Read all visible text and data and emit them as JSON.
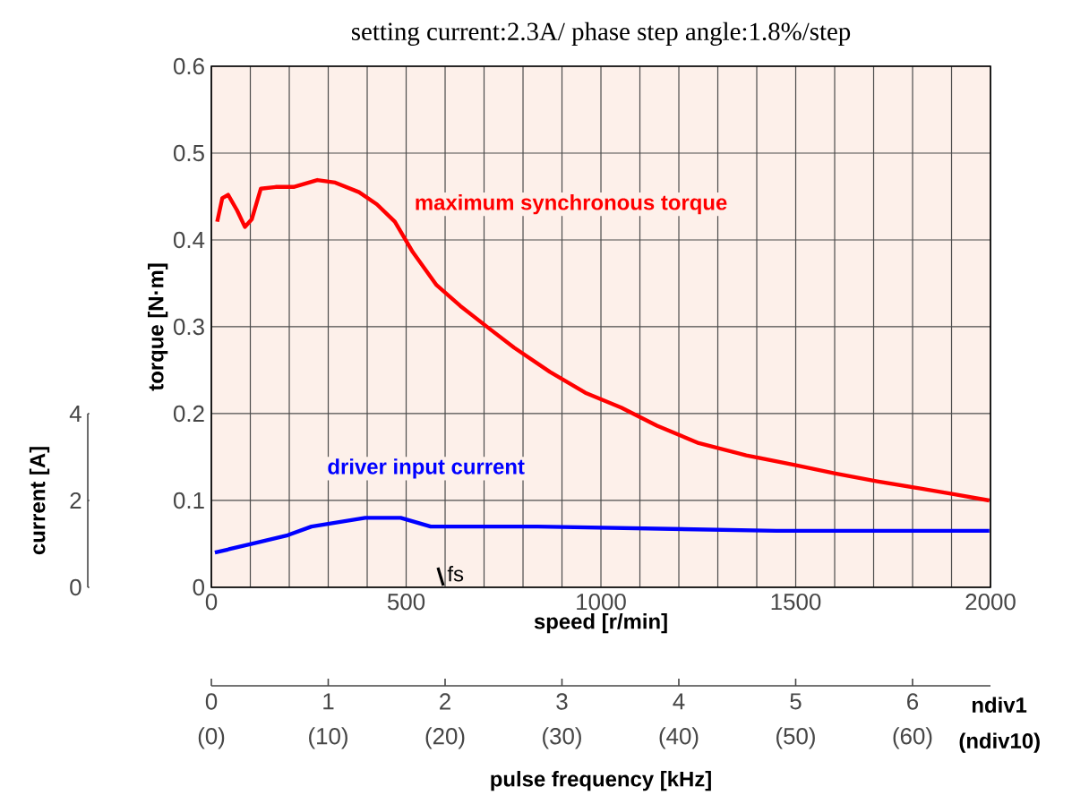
{
  "chart_data": {
    "type": "line",
    "title": "setting current:2.3A/ phase   step angle:1.8%/step",
    "xlabel": "speed [r/min]",
    "ylabel": "torque [N·m]",
    "y2label": "current [A]",
    "x2label": "pulse frequency [kHz]",
    "xlim": [
      0,
      2000
    ],
    "xticks": [
      0,
      {
        "value": 100,
        "label": null
      },
      {
        "value": 200,
        "label": null
      },
      {
        "value": 300,
        "label": null
      },
      {
        "value": 400,
        "label": null
      },
      500,
      {
        "value": 600,
        "label": null
      },
      {
        "value": 700,
        "label": null
      },
      {
        "value": 800,
        "label": null
      },
      {
        "value": 900,
        "label": null
      },
      1000,
      {
        "value": 1100,
        "label": null
      },
      {
        "value": 1200,
        "label": null
      },
      {
        "value": 1300,
        "label": null
      },
      {
        "value": 1400,
        "label": null
      },
      1500,
      {
        "value": 1600,
        "label": null
      },
      {
        "value": 1700,
        "label": null
      },
      {
        "value": 1800,
        "label": null
      },
      {
        "value": 1900,
        "label": null
      },
      2000
    ],
    "ylim": [
      0,
      0.6
    ],
    "yticks": [
      0,
      0.1,
      0.2,
      0.3,
      0.4,
      0.5,
      0.6
    ],
    "y2lim": [
      0,
      12
    ],
    "y2ticks": [
      0,
      2,
      4
    ],
    "x2lim": [
      0,
      6.667
    ],
    "x2ticks": [
      0,
      1,
      2,
      3,
      4,
      5,
      6
    ],
    "grid": true,
    "series": [
      {
        "name": "maximum synchronous torque",
        "color": "#ff0000",
        "x": [
          15,
          28,
          43,
          66,
          86,
          104,
          127,
          165,
          211,
          272,
          318,
          379,
          425,
          471,
          517,
          578,
          639,
          716,
          777,
          869,
          960,
          1052,
          1144,
          1251,
          1373,
          1495,
          1602,
          1709,
          1817,
          1908,
          1997
        ],
        "values": [
          0.421,
          0.448,
          0.452,
          0.434,
          0.415,
          0.424,
          0.459,
          0.461,
          0.461,
          0.469,
          0.466,
          0.455,
          0.441,
          0.421,
          0.386,
          0.348,
          0.324,
          0.297,
          0.276,
          0.248,
          0.224,
          0.207,
          0.186,
          0.166,
          0.152,
          0.141,
          0.131,
          0.122,
          0.114,
          0.107,
          0.1
        ]
      },
      {
        "name": "driver input current",
        "color": "#0000ff",
        "axis": "y2",
        "x": [
          9,
          104,
          196,
          257,
          395,
          486,
          563,
          838,
          1450,
          1997
        ],
        "values": [
          0.8,
          1.0,
          1.2,
          1.4,
          1.6,
          1.6,
          1.4,
          1.4,
          1.3,
          1.3
        ]
      }
    ],
    "annotations": [
      "fs",
      "ndiv1",
      "(ndiv10)",
      "(0)",
      "(10)",
      "(20)",
      "(30)",
      "(40)",
      "(50)",
      "(60)"
    ]
  }
}
